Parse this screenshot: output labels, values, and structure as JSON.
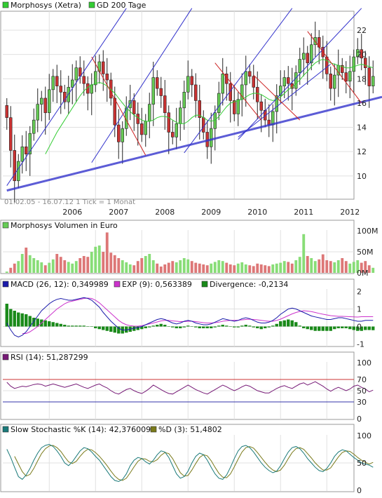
{
  "colors": {
    "panel_bg": "#ffffff",
    "grid": "#e0e0e0",
    "border": "#999999",
    "up_candle": "#66cc55",
    "down_candle": "#cc3333",
    "gd200": "#33cc33",
    "trend_blue": "#3333cc",
    "trend_red": "#cc2222",
    "vol_up": "#88dd77",
    "vol_down": "#dd7777",
    "macd": "#1a1aaa",
    "exp": "#cc33cc",
    "divergence": "#1a8a1a",
    "rsi": "#771a77",
    "rsi_upper": "#cc3333",
    "rsi_lower": "#3333aa",
    "stoch_k": "#1a7a7a",
    "stoch_d": "#7a7a1a"
  },
  "price_panel": {
    "legend": [
      {
        "label": "Morphosys (Xetra)",
        "icon": "green-square-icon"
      },
      {
        "label": "GD 200 Tage",
        "icon": "green-square-icon"
      }
    ],
    "footer": "01.02.05 - 16.07.12   1 Tick = 1 Monat",
    "y_ticks": [
      "22",
      "20",
      "18",
      "16",
      "14",
      "12",
      "10"
    ],
    "x_ticks": [
      "2006",
      "2007",
      "2008",
      "2009",
      "2010",
      "2011",
      "2012"
    ]
  },
  "volume_panel": {
    "legend": [
      {
        "label": "Morphosys Volumen in Euro",
        "icon": "green-square-icon"
      }
    ],
    "y_ticks": [
      "100M",
      "50M",
      "0M"
    ]
  },
  "macd_panel": {
    "legend": [
      {
        "label": "MACD (26, 12): 0,349989",
        "icon": "blue-square-icon"
      },
      {
        "label": "EXP (9): 0,563389",
        "icon": "magenta-square-icon"
      },
      {
        "label": "Divergence: -0,2134",
        "icon": "green-square-icon"
      }
    ],
    "y_ticks": [
      "2",
      "1",
      "0",
      "-1"
    ]
  },
  "rsi_panel": {
    "legend": [
      {
        "label": "RSI (14): 51,287299",
        "icon": "purple-square-icon"
      }
    ],
    "y_ticks": [
      "100",
      "70",
      "50",
      "30",
      "0"
    ]
  },
  "stoch_panel": {
    "legend": [
      {
        "label": "Slow Stochastic %K (14): 42,376009",
        "icon": "teal-square-icon"
      },
      {
        "label": "%D (3): 51,4802",
        "icon": "olive-square-icon"
      }
    ],
    "y_ticks": [
      "100",
      "50",
      "0"
    ]
  },
  "chart_data": [
    {
      "type": "candlestick",
      "title": "Morphosys (Xetra)",
      "period": "01.02.05 - 16.07.12",
      "interval": "1 Tick = 1 Monat",
      "ylim": [
        8.2,
        23.5
      ],
      "x_range": [
        "2005-02",
        "2012-07"
      ],
      "x_ticks": [
        "2006",
        "2007",
        "2008",
        "2009",
        "2010",
        "2011",
        "2012"
      ],
      "close": [
        14.8,
        12.1,
        9.6,
        11.2,
        12.4,
        11.8,
        13.5,
        14.6,
        15.9,
        16.4,
        15.2,
        17.1,
        18.2,
        17.4,
        16.9,
        16.1,
        17.3,
        17.9,
        18.9,
        18.2,
        17.6,
        16.8,
        17.5,
        18.6,
        19.4,
        18.4,
        17.9,
        16.4,
        14.2,
        12.8,
        13.9,
        15.6,
        16.2,
        15.1,
        14.3,
        13.4,
        14.5,
        15.9,
        18.1,
        17.2,
        16.6,
        15.2,
        13.6,
        13.2,
        14.3,
        15.6,
        16.9,
        18.2,
        17.5,
        16.2,
        14.8,
        13.6,
        12.4,
        13.9,
        15.2,
        16.8,
        18.4,
        17.6,
        16.2,
        15.1,
        16.3,
        17.5,
        18.6,
        18.2,
        17.3,
        16.1,
        15.4,
        14.6,
        14.2,
        15.3,
        16.6,
        17.4,
        18.1,
        17.6,
        17.2,
        18.5,
        19.6,
        20.1,
        19.3,
        20.8,
        21.4,
        20.6,
        19.8,
        18.4,
        17.2,
        18.3,
        19.1,
        18.5,
        17.8,
        18.6,
        19.8,
        20.4,
        19.7,
        18.9,
        17.4,
        18.2
      ],
      "series": [
        {
          "name": "GD 200 Tage",
          "type": "line",
          "values": [
            null,
            null,
            null,
            null,
            null,
            null,
            null,
            null,
            null,
            null,
            11.8,
            12.4,
            13.0,
            13.6,
            14.1,
            14.6,
            15.1,
            15.6,
            16.1,
            16.6,
            17.0,
            17.3,
            17.5,
            17.6,
            17.7,
            17.6,
            17.4,
            17.1,
            16.8,
            16.4,
            16.0,
            15.6,
            15.3,
            15.0,
            14.8,
            14.6,
            14.5,
            14.5,
            14.6,
            14.8,
            14.9,
            14.9,
            14.8,
            14.6,
            14.4,
            14.3,
            14.3,
            14.5,
            14.8,
            15.0,
            15.0,
            14.8,
            14.6,
            14.5,
            14.6,
            14.9,
            15.3,
            15.7,
            16.0,
            16.1,
            16.2,
            16.3,
            16.5,
            16.7,
            16.8,
            16.8,
            16.7,
            16.5,
            16.3,
            16.2,
            16.3,
            16.5,
            16.8,
            17.1,
            17.3,
            17.6,
            17.9,
            18.3,
            18.6,
            19.0,
            19.3,
            19.5,
            19.6,
            19.5,
            19.3,
            19.2,
            19.1,
            19.0,
            18.9,
            18.9,
            19.0,
            19.1,
            19.2,
            19.1,
            19.0,
            18.9
          ]
        }
      ]
    },
    {
      "type": "bar",
      "title": "Morphosys Volumen in Euro",
      "ylim": [
        0,
        100
      ],
      "unit": "M",
      "values": [
        3,
        12,
        22,
        28,
        45,
        60,
        42,
        35,
        30,
        25,
        18,
        24,
        32,
        45,
        38,
        30,
        26,
        22,
        28,
        35,
        40,
        38,
        50,
        62,
        65,
        50,
        96,
        48,
        42,
        35,
        30,
        25,
        20,
        18,
        28,
        35,
        40,
        45,
        30,
        22,
        15,
        20,
        24,
        28,
        25,
        30,
        35,
        32,
        28,
        24,
        22,
        20,
        18,
        22,
        26,
        30,
        28,
        24,
        20,
        18,
        22,
        25,
        20,
        18,
        16,
        22,
        20,
        18,
        16,
        20,
        22,
        24,
        28,
        26,
        22,
        30,
        38,
        92,
        40,
        35,
        28,
        32,
        44,
        30,
        28,
        25,
        30,
        35,
        28,
        22,
        26,
        30,
        24,
        28,
        18,
        12
      ]
    },
    {
      "type": "line",
      "title": "MACD",
      "ylim": [
        -1,
        2
      ],
      "series": [
        {
          "name": "MACD (26, 12): 0,349989",
          "values": [
            0.2,
            -0.2,
            -0.5,
            -0.6,
            -0.5,
            -0.3,
            0,
            0.3,
            0.6,
            0.9,
            1.1,
            1.3,
            1.45,
            1.55,
            1.6,
            1.55,
            1.5,
            1.5,
            1.55,
            1.6,
            1.65,
            1.6,
            1.5,
            1.3,
            1.1,
            0.8,
            0.55,
            0.3,
            0.1,
            -0.1,
            -0.2,
            -0.2,
            -0.15,
            -0.1,
            -0.05,
            0,
            0.1,
            0.2,
            0.3,
            0.4,
            0.45,
            0.4,
            0.3,
            0.2,
            0.15,
            0.2,
            0.3,
            0.35,
            0.3,
            0.2,
            0.15,
            0.1,
            0.1,
            0.15,
            0.25,
            0.35,
            0.45,
            0.4,
            0.35,
            0.3,
            0.35,
            0.45,
            0.5,
            0.45,
            0.35,
            0.25,
            0.2,
            0.2,
            0.25,
            0.35,
            0.5,
            0.7,
            0.85,
            1.0,
            1.05,
            1.0,
            0.9,
            0.8,
            0.7,
            0.6,
            0.55,
            0.5,
            0.45,
            0.4,
            0.4,
            0.45,
            0.5,
            0.5,
            0.45,
            0.4,
            0.35,
            0.3,
            0.3,
            0.35,
            0.35,
            0.35
          ]
        },
        {
          "name": "EXP (9): 0,563389",
          "values": [
            null,
            null,
            null,
            null,
            -0.4,
            -0.4,
            -0.3,
            -0.15,
            0,
            0.2,
            0.4,
            0.6,
            0.8,
            1.0,
            1.15,
            1.3,
            1.4,
            1.45,
            1.5,
            1.55,
            1.6,
            1.62,
            1.6,
            1.5,
            1.35,
            1.15,
            0.95,
            0.75,
            0.55,
            0.35,
            0.2,
            0.1,
            0.05,
            0.02,
            0.02,
            0.05,
            0.1,
            0.15,
            0.2,
            0.26,
            0.32,
            0.35,
            0.35,
            0.32,
            0.3,
            0.28,
            0.28,
            0.3,
            0.3,
            0.28,
            0.25,
            0.22,
            0.2,
            0.2,
            0.22,
            0.25,
            0.3,
            0.33,
            0.35,
            0.35,
            0.36,
            0.38,
            0.4,
            0.42,
            0.4,
            0.38,
            0.35,
            0.32,
            0.3,
            0.3,
            0.35,
            0.42,
            0.52,
            0.62,
            0.72,
            0.8,
            0.86,
            0.9,
            0.88,
            0.85,
            0.8,
            0.75,
            0.7,
            0.66,
            0.62,
            0.6,
            0.58,
            0.58,
            0.57,
            0.56,
            0.55,
            0.54,
            0.56,
            0.56,
            0.56,
            0.56
          ]
        },
        {
          "name": "Divergence: -0,2134",
          "type": "bar",
          "values": [
            1.3,
            1.0,
            0.9,
            0.8,
            0.75,
            0.7,
            0.6,
            0.5,
            0.45,
            0.4,
            0.35,
            0.3,
            0.25,
            0.2,
            0.15,
            0.1,
            0.05,
            0.05,
            0.05,
            0.05,
            0.05,
            0,
            0,
            -0.1,
            -0.15,
            -0.2,
            -0.25,
            -0.3,
            -0.35,
            -0.4,
            -0.4,
            -0.35,
            -0.3,
            -0.25,
            -0.2,
            -0.15,
            -0.1,
            -0.05,
            0.05,
            0.1,
            0.15,
            0.1,
            0,
            -0.05,
            -0.1,
            -0.1,
            -0.05,
            0.05,
            0,
            -0.05,
            -0.1,
            -0.1,
            -0.1,
            -0.1,
            -0.05,
            0.05,
            0.1,
            0.05,
            0,
            -0.05,
            -0.05,
            0.05,
            0.1,
            0.05,
            -0.05,
            -0.1,
            -0.15,
            -0.1,
            -0.05,
            0.05,
            0.15,
            0.3,
            0.35,
            0.4,
            0.35,
            0.25,
            0.05,
            -0.1,
            -0.15,
            -0.2,
            -0.25,
            -0.25,
            -0.25,
            -0.25,
            -0.25,
            -0.15,
            -0.1,
            -0.1,
            -0.1,
            -0.15,
            -0.2,
            -0.25,
            -0.25,
            -0.2,
            -0.2,
            -0.21
          ]
        }
      ]
    },
    {
      "type": "line",
      "title": "RSI",
      "ylim": [
        0,
        100
      ],
      "reference_lines": [
        70,
        30
      ],
      "series": [
        {
          "name": "RSI (14): 51,287299",
          "values": [
            65,
            58,
            54,
            56,
            58,
            57,
            59,
            61,
            62,
            61,
            58,
            60,
            62,
            60,
            58,
            56,
            58,
            60,
            62,
            59,
            56,
            54,
            57,
            60,
            62,
            58,
            55,
            50,
            46,
            44,
            48,
            52,
            54,
            50,
            47,
            45,
            49,
            54,
            60,
            56,
            52,
            48,
            45,
            44,
            48,
            52,
            56,
            60,
            56,
            52,
            49,
            46,
            44,
            48,
            52,
            56,
            60,
            57,
            53,
            50,
            53,
            57,
            60,
            58,
            54,
            50,
            48,
            46,
            46,
            50,
            54,
            57,
            59,
            56,
            54,
            58,
            62,
            64,
            60,
            63,
            66,
            62,
            58,
            53,
            49,
            53,
            56,
            53,
            50,
            53,
            58,
            60,
            56,
            53,
            48,
            51
          ]
        }
      ]
    },
    {
      "type": "line",
      "title": "Slow Stochastic",
      "ylim": [
        0,
        100
      ],
      "series": [
        {
          "name": "Slow Stochastic %K (14): 42,376009",
          "values": [
            75,
            60,
            42,
            25,
            20,
            28,
            40,
            55,
            68,
            78,
            82,
            84,
            80,
            72,
            62,
            50,
            45,
            52,
            62,
            72,
            78,
            76,
            70,
            62,
            55,
            45,
            35,
            25,
            18,
            16,
            20,
            30,
            45,
            55,
            60,
            58,
            52,
            48,
            55,
            65,
            72,
            70,
            60,
            45,
            30,
            22,
            25,
            35,
            50,
            62,
            68,
            65,
            55,
            42,
            30,
            22,
            20,
            28,
            42,
            58,
            72,
            80,
            82,
            78,
            70,
            60,
            50,
            42,
            36,
            32,
            35,
            45,
            58,
            70,
            78,
            80,
            76,
            68,
            58,
            50,
            42,
            36,
            34,
            40,
            50,
            62,
            70,
            74,
            72,
            66,
            60,
            55,
            50,
            48,
            46,
            42
          ]
        },
        {
          "name": "%D (3): 51,4802",
          "values": [
            null,
            null,
            62,
            48,
            34,
            26,
            29,
            40,
            54,
            67,
            76,
            81,
            82,
            78,
            71,
            61,
            52,
            49,
            53,
            62,
            70,
            75,
            74,
            69,
            62,
            54,
            45,
            35,
            26,
            20,
            18,
            22,
            32,
            43,
            53,
            58,
            57,
            53,
            52,
            56,
            64,
            69,
            67,
            58,
            45,
            32,
            26,
            27,
            37,
            49,
            60,
            65,
            63,
            54,
            42,
            31,
            24,
            23,
            30,
            43,
            57,
            70,
            78,
            80,
            77,
            69,
            60,
            51,
            43,
            37,
            34,
            37,
            46,
            58,
            69,
            76,
            78,
            75,
            67,
            59,
            50,
            43,
            37,
            37,
            41,
            51,
            61,
            69,
            72,
            71,
            66,
            60,
            55,
            51,
            48,
            51
          ]
        }
      ]
    }
  ]
}
